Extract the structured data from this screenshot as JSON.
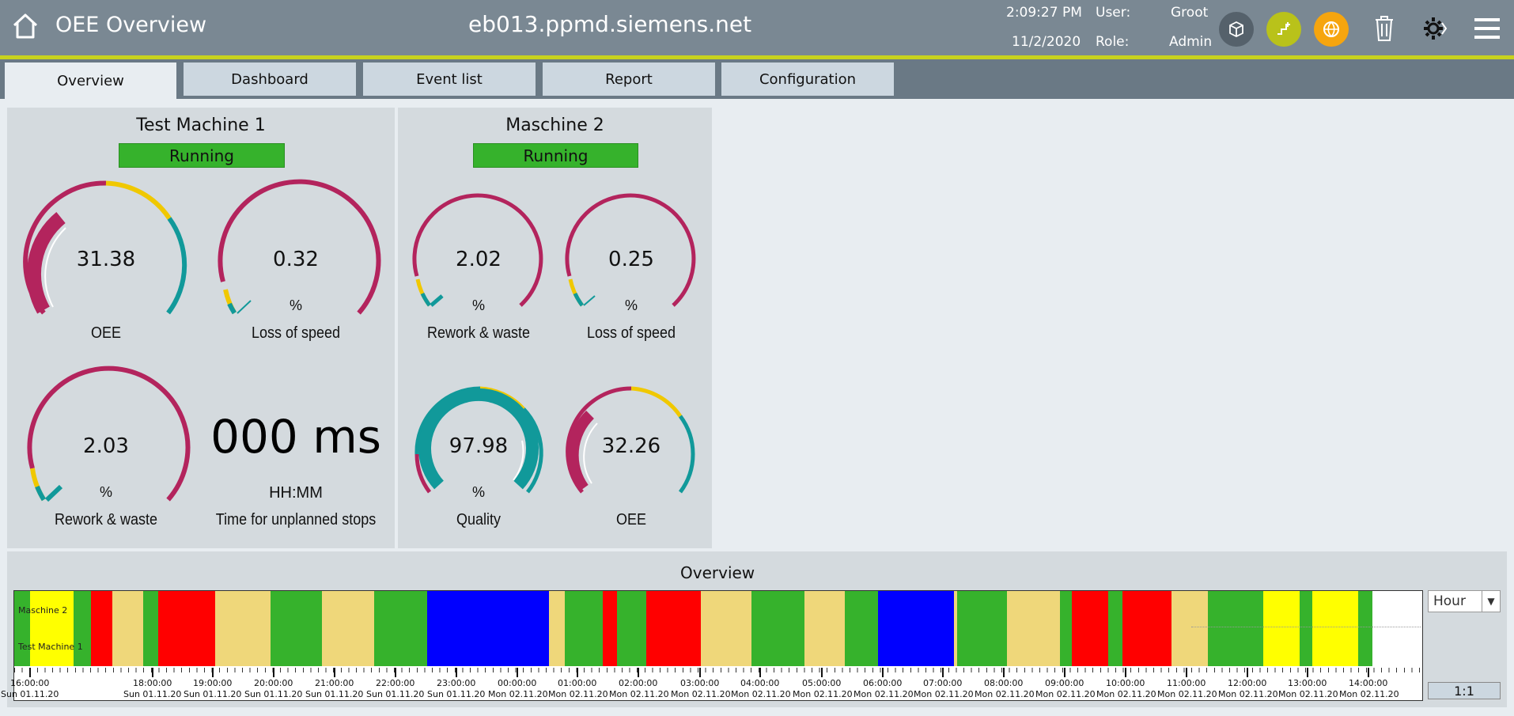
{
  "header": {
    "title": "OEE Overview",
    "host": "eb013.ppmd.siemens.net",
    "time": "2:09:27 PM",
    "date": "11/2/2020",
    "user_label": "User:",
    "user_value": "Groot",
    "role_label": "Role:",
    "role_value": "Admin",
    "icons": [
      "home-icon",
      "cube-icon",
      "workflow-icon",
      "globe-icon",
      "trash-icon",
      "settings-gear-icon",
      "menu-icon"
    ]
  },
  "tabs": [
    "Overview",
    "Dashboard",
    "Event list",
    "Report",
    "Configuration"
  ],
  "active_tab": "Overview",
  "colors": {
    "running": "#36b22c",
    "magenta": "#b3245d",
    "yellow": "#f0c800",
    "teal": "#11999a",
    "timeline_green": "#36b22c",
    "timeline_yellow": "#ffff00",
    "timeline_red": "#ff0000",
    "timeline_tan": "#efd77a",
    "timeline_blue": "#0000ff"
  },
  "machine1": {
    "name": "Test Machine 1",
    "status": "Running",
    "gauges": [
      {
        "value": "31.38",
        "unit": "",
        "label": "OEE"
      },
      {
        "value": "0.32",
        "unit": "%",
        "label": "Loss of speed"
      },
      {
        "value": "2.03",
        "unit": "%",
        "label": "Rework & waste"
      }
    ],
    "stop_time": {
      "value": "000 ms",
      "unit": "HH:MM",
      "label": "Time for unplanned stops"
    }
  },
  "machine2": {
    "name": "Maschine 2",
    "status": "Running",
    "gauges": [
      {
        "value": "2.02",
        "unit": "%",
        "label": "Rework & waste"
      },
      {
        "value": "0.25",
        "unit": "%",
        "label": "Loss of speed"
      },
      {
        "value": "97.98",
        "unit": "%",
        "label": "Quality"
      },
      {
        "value": "32.26",
        "unit": "",
        "label": "OEE"
      }
    ]
  },
  "overview": {
    "title": "Overview",
    "rows": [
      "Maschine 2",
      "Test Machine 1"
    ],
    "ticks": [
      {
        "time": "16:00:00",
        "date": "Sun 01.11.20"
      },
      {
        "time": "18:00:00",
        "date": "Sun 01.11.20"
      },
      {
        "time": "19:00:00",
        "date": "Sun 01.11.20"
      },
      {
        "time": "20:00:00",
        "date": "Sun 01.11.20"
      },
      {
        "time": "21:00:00",
        "date": "Sun 01.11.20"
      },
      {
        "time": "22:00:00",
        "date": "Sun 01.11.20"
      },
      {
        "time": "23:00:00",
        "date": "Sun 01.11.20"
      },
      {
        "time": "00:00:00",
        "date": "Mon 02.11.20"
      },
      {
        "time": "01:00:00",
        "date": "Mon 02.11.20"
      },
      {
        "time": "02:00:00",
        "date": "Mon 02.11.20"
      },
      {
        "time": "03:00:00",
        "date": "Mon 02.11.20"
      },
      {
        "time": "04:00:00",
        "date": "Mon 02.11.20"
      },
      {
        "time": "05:00:00",
        "date": "Mon 02.11.20"
      },
      {
        "time": "06:00:00",
        "date": "Mon 02.11.20"
      },
      {
        "time": "07:00:00",
        "date": "Mon 02.11.20"
      },
      {
        "time": "08:00:00",
        "date": "Mon 02.11.20"
      },
      {
        "time": "09:00:00",
        "date": "Mon 02.11.20"
      },
      {
        "time": "10:00:00",
        "date": "Mon 02.11.20"
      },
      {
        "time": "11:00:00",
        "date": "Mon 02.11.20"
      },
      {
        "time": "12:00:00",
        "date": "Mon 02.11.20"
      },
      {
        "time": "13:00:00",
        "date": "Mon 02.11.20"
      },
      {
        "time": "14:00:00",
        "date": "Mon 02.11.20"
      }
    ],
    "scale_select": "Hour",
    "ratio": "1:1"
  }
}
